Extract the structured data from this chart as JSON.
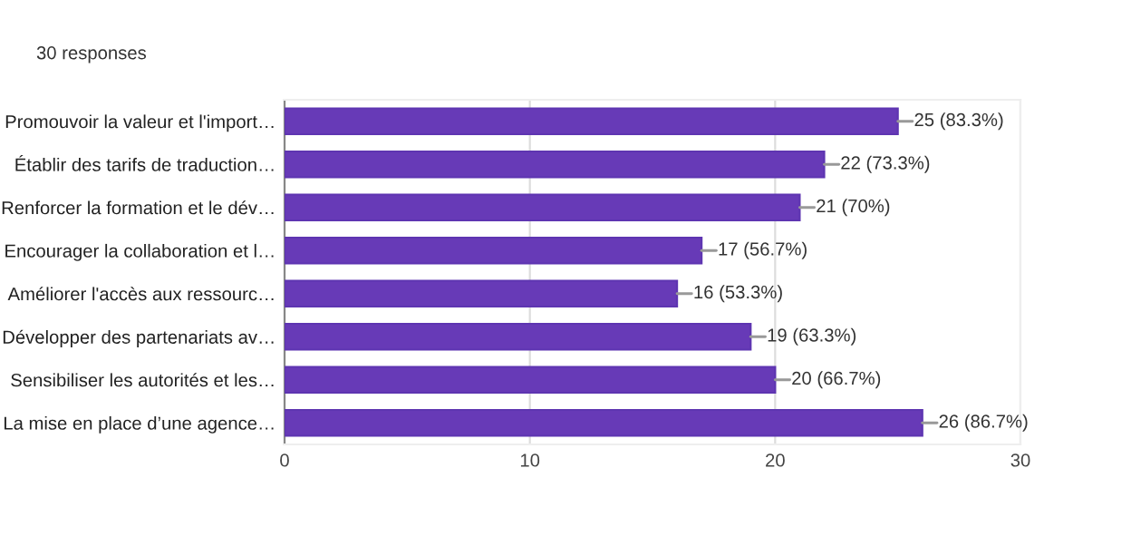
{
  "chart_data": {
    "type": "bar",
    "orientation": "horizontal",
    "subtitle": "30 responses",
    "categories": [
      "Promouvoir la valeur et l'import…",
      "Établir des tarifs de traduction…",
      "Renforcer la formation et le dév…",
      "Encourager la collaboration et l…",
      "Améliorer l'accès aux ressourc…",
      "Développer des partenariats av…",
      "Sensibiliser les autorités et les…",
      "La mise en place d’une agence…"
    ],
    "values": [
      25,
      22,
      21,
      17,
      16,
      19,
      20,
      26
    ],
    "value_labels": [
      "25 (83.3%)",
      "22 (73.3%)",
      "21 (70%)",
      "17 (56.7%)",
      "16 (53.3%)",
      "19 (63.3%)",
      "20 (66.7%)",
      "26 (86.7%)"
    ],
    "color": "#673ab7",
    "xlim": [
      0,
      30
    ],
    "xticks": [
      0,
      10,
      20,
      30
    ],
    "grid": "x",
    "legend": false
  }
}
